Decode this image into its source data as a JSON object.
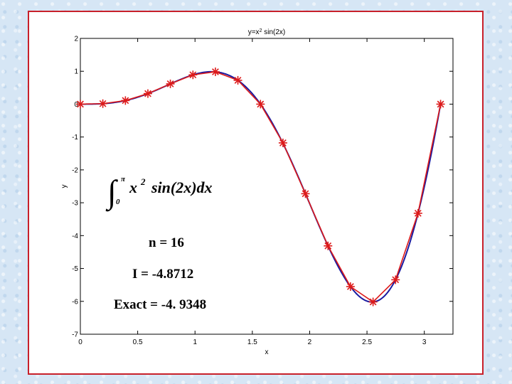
{
  "chart_data": {
    "type": "line",
    "title": "y=x² sin(2x)",
    "title_base": "y=x",
    "title_sup": "2",
    "title_rest": " sin(2x)",
    "xlabel": "x",
    "ylabel": "y",
    "xlim": [
      0,
      3.25
    ],
    "ylim": [
      -7,
      2
    ],
    "x_ticks": [
      0,
      0.5,
      1,
      1.5,
      2,
      2.5,
      3
    ],
    "x_tick_labels": [
      "0",
      "0.5",
      "1",
      "1.5",
      "2",
      "2.5",
      "3"
    ],
    "y_ticks": [
      2,
      1,
      0,
      -1,
      -2,
      -3,
      -4,
      -5,
      -6,
      -7
    ],
    "y_tick_labels": [
      "2",
      "1",
      "0",
      "-1",
      "-2",
      "-3",
      "-4",
      "-5",
      "-6",
      "-7"
    ],
    "grid": false,
    "series": [
      {
        "role": "exact-curve",
        "color": "#1a1aa0",
        "function": "x^2 sin(2x)",
        "x_range": [
          0,
          3.14159
        ]
      },
      {
        "role": "trapezoid-nodes",
        "color": "#dd1a1a",
        "marker": "asterisk",
        "x": [
          0,
          0.196,
          0.393,
          0.589,
          0.785,
          0.982,
          1.178,
          1.374,
          1.571,
          1.767,
          1.963,
          2.16,
          2.356,
          2.553,
          2.749,
          2.945,
          3.142
        ],
        "y": [
          0,
          0.015,
          0.109,
          0.321,
          0.617,
          0.891,
          0.984,
          0.725,
          0.0,
          -1.179,
          -2.725,
          -4.312,
          -5.551,
          -6.017,
          -5.343,
          -3.32,
          0.0
        ]
      }
    ],
    "annotations": {
      "integral": {
        "lower": "0",
        "upper": "π",
        "expr_x": "x",
        "expr_power": "2",
        "expr_sin": "sin(2x)dx"
      },
      "n_label": "n = 16",
      "i_label": "I = -4.8712",
      "exact_label": "Exact = -4. 9348"
    }
  }
}
